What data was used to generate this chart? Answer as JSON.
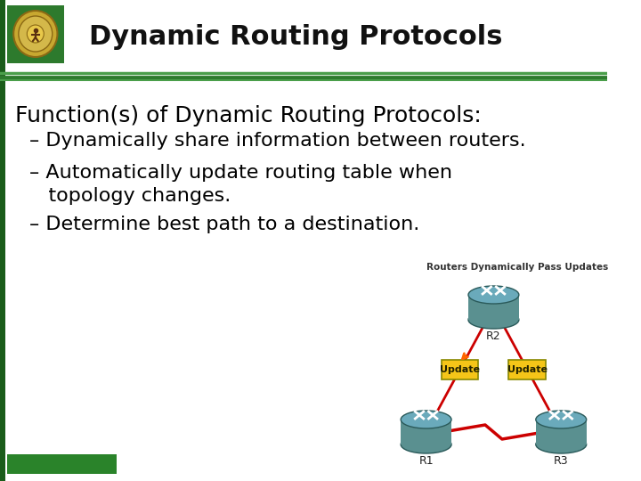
{
  "title": "Dynamic Routing Protocols",
  "background_color": "#ffffff",
  "header_bg": "#ffffff",
  "header_bar_color": "#2d7a2d",
  "separator_colors": [
    "#4a9e4a",
    "#2d7a2d",
    "#4a9e4a"
  ],
  "body_text_color": "#000000",
  "heading": "Function(s) of Dynamic Routing Protocols:",
  "bullets": [
    "– Dynamically share information between routers.",
    "– Automatically update routing table when\n   topology changes.",
    "– Determine best path to a destination."
  ],
  "diagram_caption": "Routers Dynamically Pass Updates",
  "router_color": "#5a9090",
  "router_label_color": "#ffffff",
  "link_color": "#cc0000",
  "update_box_color": "#f5c518",
  "update_text": "Update",
  "footer_bar_color_left": "#1a5c1a",
  "footer_bar_color_right": "#3aaa3a",
  "logo_bg": "#2d7a2d",
  "heading_fontsize": 18,
  "bullet_fontsize": 16
}
